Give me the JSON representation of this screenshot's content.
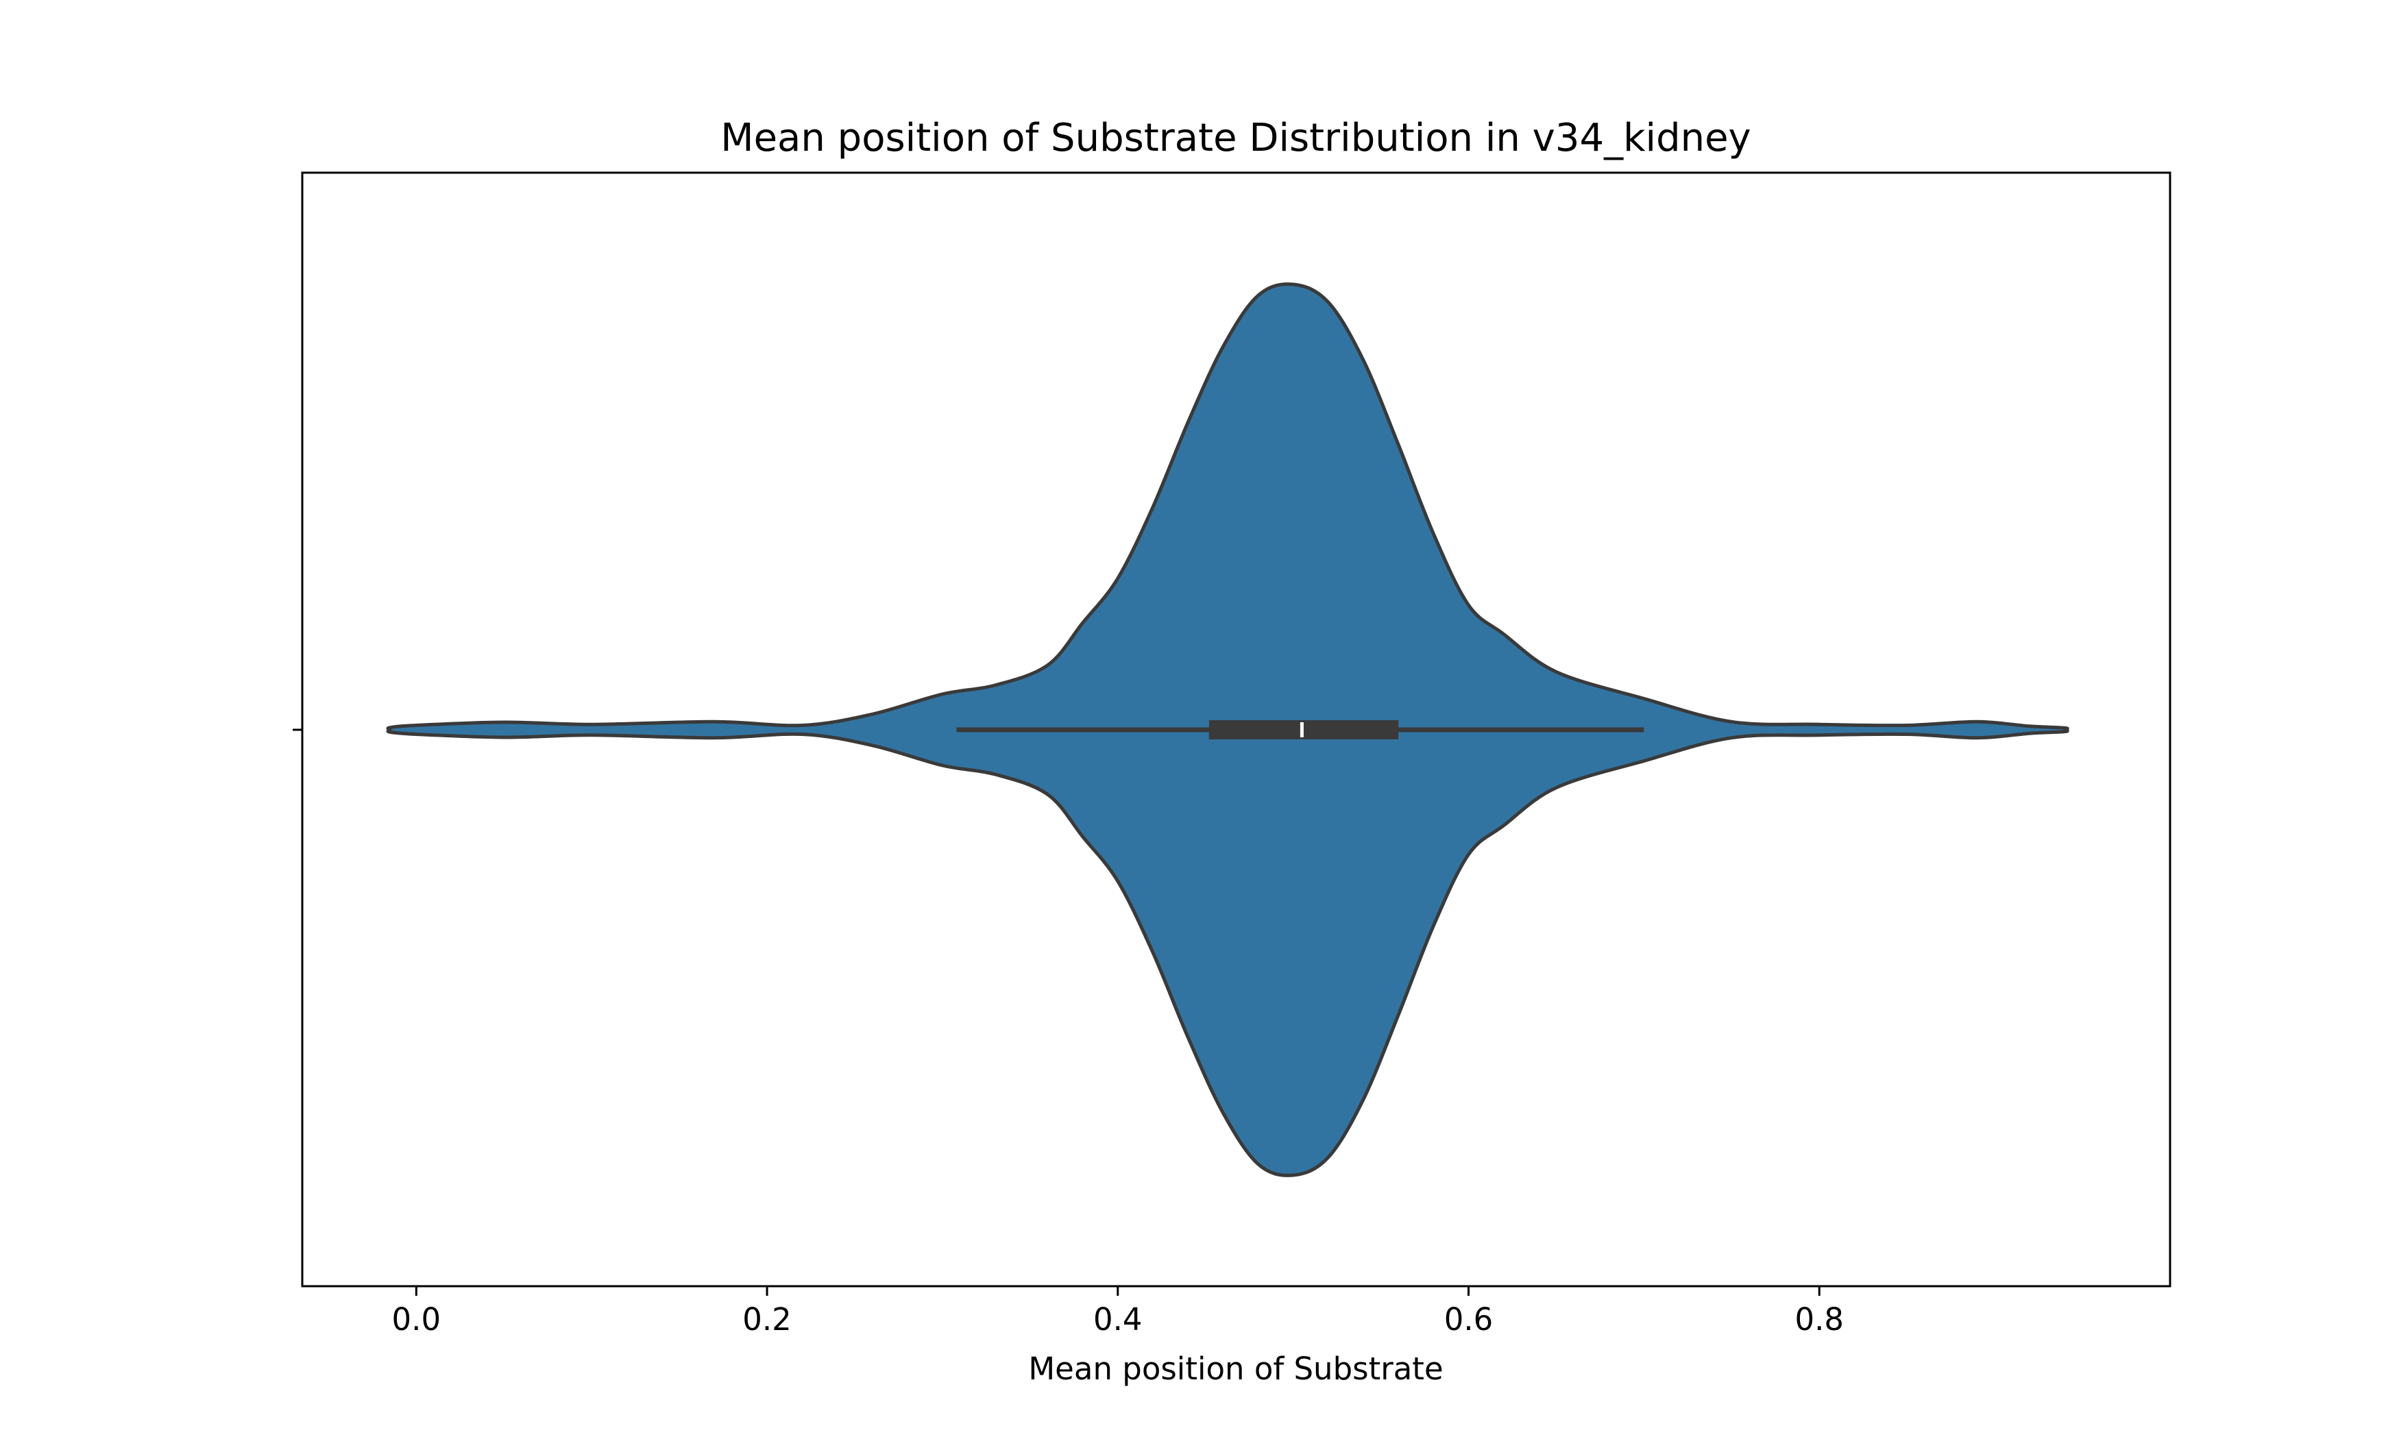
{
  "chart_data": {
    "type": "violin",
    "orientation": "horizontal",
    "title": "Mean position of Substrate Distribution in v34_kidney",
    "xlabel": "Mean position of Substrate",
    "ylabel": "",
    "xlim": [
      -0.065,
      1.0
    ],
    "xticks": [
      0.0,
      0.2,
      0.4,
      0.6,
      0.8
    ],
    "xtick_labels": [
      "0.0",
      "0.2",
      "0.4",
      "0.6",
      "0.8"
    ],
    "grid": false,
    "legend": "none",
    "series": [
      {
        "fill_color": "#3274a1",
        "edge_color": "#3a3a3a",
        "box_color": "#3a3a3a",
        "median_color": "#ffffff",
        "range": [
          -0.015,
          0.94
        ],
        "density_profile": {
          "x": [
            -0.015,
            0.0,
            0.05,
            0.1,
            0.17,
            0.22,
            0.26,
            0.3,
            0.33,
            0.36,
            0.38,
            0.4,
            0.42,
            0.44,
            0.46,
            0.48,
            0.5,
            0.52,
            0.54,
            0.56,
            0.58,
            0.6,
            0.62,
            0.65,
            0.7,
            0.75,
            0.8,
            0.85,
            0.89,
            0.92,
            0.94
          ],
          "relative_width": [
            0.005,
            0.01,
            0.017,
            0.012,
            0.018,
            0.01,
            0.035,
            0.08,
            0.1,
            0.145,
            0.24,
            0.34,
            0.5,
            0.69,
            0.86,
            0.975,
            1.0,
            0.96,
            0.83,
            0.64,
            0.44,
            0.28,
            0.215,
            0.13,
            0.07,
            0.018,
            0.012,
            0.01,
            0.018,
            0.008,
            0.004
          ]
        },
        "whisker_low": 0.308,
        "q1": 0.452,
        "median": 0.505,
        "q3": 0.56,
        "whisker_high": 0.7
      }
    ]
  }
}
